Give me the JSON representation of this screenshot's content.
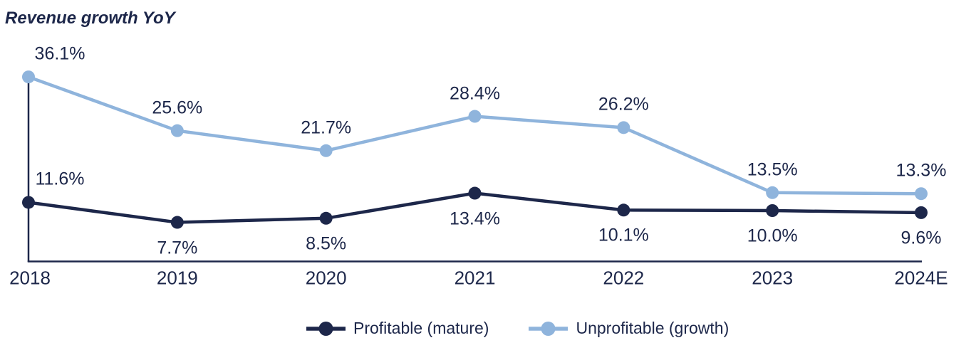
{
  "title": "Revenue growth YoY",
  "colors": {
    "navy": "#1d274a",
    "light_blue": "#8fb4dc",
    "background": "#ffffff"
  },
  "chart_data": {
    "type": "line",
    "title": "Revenue growth YoY",
    "categories": [
      "2018",
      "2019",
      "2020",
      "2021",
      "2022",
      "2023",
      "2024E"
    ],
    "series": [
      {
        "name": "Profitable (mature)",
        "color": "#1d274a",
        "values": [
          11.6,
          7.7,
          8.5,
          13.4,
          10.1,
          10.0,
          9.6
        ],
        "labels": [
          "11.6%",
          "7.7%",
          "8.5%",
          "13.4%",
          "10.1%",
          "10.0%",
          "9.6%"
        ],
        "label_positions": [
          "above",
          "below",
          "below",
          "below",
          "below",
          "below",
          "below"
        ]
      },
      {
        "name": "Unprofitable (growth)",
        "color": "#8fb4dc",
        "values": [
          36.1,
          25.6,
          21.7,
          28.4,
          26.2,
          13.5,
          13.3
        ],
        "labels": [
          "36.1%",
          "25.6%",
          "21.7%",
          "28.4%",
          "26.2%",
          "13.5%",
          "13.3%"
        ],
        "label_positions": [
          "above",
          "above",
          "above",
          "above",
          "above",
          "above",
          "above"
        ]
      }
    ],
    "value_suffix": "%",
    "ylim": [
      0,
      38.5
    ],
    "grid": false,
    "data_labels": true,
    "legend_position": "bottom",
    "axis": "left-and-bottom"
  }
}
